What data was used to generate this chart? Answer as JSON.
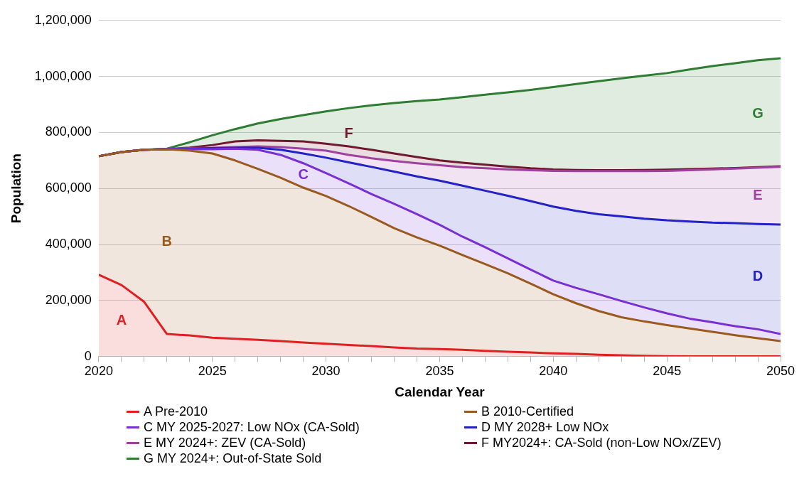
{
  "chart_data": {
    "type": "area",
    "stacked": true,
    "xlabel": "Calendar Year",
    "ylabel": "Population",
    "x": [
      2020,
      2021,
      2022,
      2023,
      2024,
      2025,
      2026,
      2027,
      2028,
      2029,
      2030,
      2031,
      2032,
      2033,
      2034,
      2035,
      2036,
      2037,
      2038,
      2039,
      2040,
      2041,
      2042,
      2043,
      2044,
      2045,
      2046,
      2047,
      2048,
      2049,
      2050
    ],
    "xlim": [
      2020,
      2050
    ],
    "xticks": [
      2020,
      {
        "value": 2021,
        "label": null
      },
      {
        "value": 2022,
        "label": null
      },
      {
        "value": 2023,
        "label": null
      },
      {
        "value": 2024,
        "label": null
      },
      2025,
      {
        "value": 2026,
        "label": null
      },
      {
        "value": 2027,
        "label": null
      },
      {
        "value": 2028,
        "label": null
      },
      {
        "value": 2029,
        "label": null
      },
      2030,
      {
        "value": 2031,
        "label": null
      },
      {
        "value": 2032,
        "label": null
      },
      {
        "value": 2033,
        "label": null
      },
      {
        "value": 2034,
        "label": null
      },
      2035,
      {
        "value": 2036,
        "label": null
      },
      {
        "value": 2037,
        "label": null
      },
      {
        "value": 2038,
        "label": null
      },
      {
        "value": 2039,
        "label": null
      },
      2040,
      {
        "value": 2041,
        "label": null
      },
      {
        "value": 2042,
        "label": null
      },
      {
        "value": 2043,
        "label": null
      },
      {
        "value": 2044,
        "label": null
      },
      2045,
      {
        "value": 2046,
        "label": null
      },
      {
        "value": 2047,
        "label": null
      },
      {
        "value": 2048,
        "label": null
      },
      {
        "value": 2049,
        "label": null
      },
      2050
    ],
    "ylim": [
      0,
      1200000
    ],
    "yticks": [
      0,
      {
        "value": 200000,
        "label": "200,000"
      },
      {
        "value": 400000,
        "label": "400,000"
      },
      {
        "value": 600000,
        "label": "600,000"
      },
      {
        "value": 800000,
        "label": "800,000"
      },
      {
        "value": 1000000,
        "label": "1,000,000"
      },
      {
        "value": 1200000,
        "label": "1,200,000"
      }
    ],
    "grid": "y",
    "legend": "bottom",
    "series": [
      {
        "name": "A Pre-2010",
        "color": "#e02020",
        "values": [
          292000,
          255000,
          195000,
          80000,
          75000,
          67000,
          63000,
          59000,
          55000,
          50000,
          45000,
          41000,
          37000,
          32000,
          28000,
          26000,
          24000,
          20000,
          17000,
          14000,
          11000,
          9000,
          6000,
          4000,
          2000,
          1000,
          0,
          0,
          0,
          0,
          0
        ]
      },
      {
        "name": "B 2010-Certified",
        "color": "#9a5a1e",
        "values": [
          423000,
          475000,
          543000,
          660000,
          660000,
          658000,
          637000,
          611000,
          583000,
          553000,
          528000,
          496000,
          461000,
          426000,
          397000,
          370000,
          338000,
          310000,
          280000,
          246000,
          211000,
          181000,
          156000,
          136000,
          123000,
          111000,
          100000,
          88000,
          76000,
          65000,
          55000
        ]
      },
      {
        "name": "C MY 2025-2027: Low NOx (CA-Sold)",
        "color": "#7a2fd6",
        "values": [
          0,
          0,
          0,
          0,
          5000,
          15000,
          42000,
          68000,
          82000,
          87000,
          82000,
          81000,
          82000,
          87000,
          83000,
          74000,
          66000,
          60000,
          53000,
          50000,
          49000,
          55000,
          60000,
          58000,
          50000,
          42000,
          35000,
          34000,
          32000,
          32000,
          25000
        ]
      },
      {
        "name": "D MY 2028+ Low NOx",
        "color": "#2222c8",
        "values": [
          0,
          0,
          0,
          0,
          2000,
          4000,
          3000,
          7000,
          18000,
          35000,
          55000,
          75000,
          97000,
          115000,
          135000,
          158000,
          182000,
          202000,
          224000,
          245000,
          264000,
          275000,
          286000,
          302000,
          317000,
          332000,
          347000,
          356000,
          368000,
          376000,
          391000
        ]
      },
      {
        "name": "E MY 2024+: ZEV (CA-Sold)",
        "color": "#a040a0",
        "values": [
          0,
          0,
          0,
          0,
          2000,
          1000,
          3000,
          5000,
          10000,
          17000,
          25000,
          27000,
          31000,
          38000,
          47000,
          55000,
          66000,
          80000,
          94000,
          110000,
          128000,
          142000,
          154000,
          162000,
          170000,
          177000,
          183000,
          190000,
          195000,
          201000,
          206000
        ]
      },
      {
        "name": "F MY2024+: CA-Sold (non-Low NOx/ZEV)",
        "color": "#701830",
        "values": [
          0,
          0,
          0,
          0,
          2000,
          10000,
          20000,
          22000,
          22000,
          26000,
          25000,
          30000,
          30000,
          27000,
          22000,
          17000,
          16000,
          13000,
          10000,
          7000,
          5000,
          4000,
          3000,
          3000,
          4000,
          4000,
          4000,
          3000,
          2000,
          2000,
          2000
        ]
      },
      {
        "name": "G MY 2024+: Out-of-State Sold",
        "color": "#2e7d32",
        "values": [
          0,
          0,
          0,
          2000,
          19000,
          35000,
          44000,
          60000,
          78000,
          94000,
          115000,
          137000,
          159000,
          180000,
          200000,
          218000,
          234000,
          250000,
          265000,
          280000,
          294000,
          307000,
          318000,
          328000,
          337000,
          345000,
          356000,
          366000,
          374000,
          382000,
          386000
        ]
      }
    ],
    "annotations": [
      "A",
      "B",
      "C",
      "D",
      "E",
      "F",
      "G"
    ]
  }
}
